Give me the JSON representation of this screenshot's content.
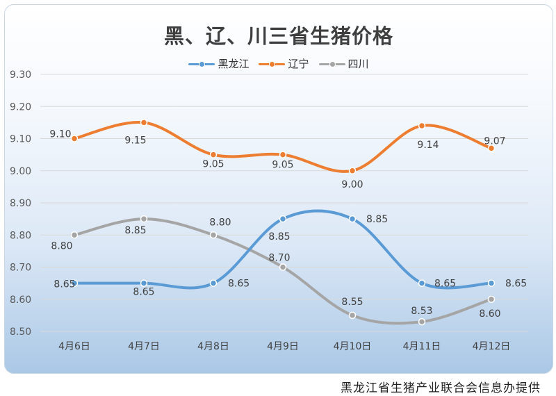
{
  "chart_data": {
    "type": "line",
    "title": "黑、辽、川三省生猪价格",
    "categories": [
      "4月6日",
      "4月7日",
      "4月8日",
      "4月9日",
      "4月10日",
      "4月11日",
      "4月12日"
    ],
    "series": [
      {
        "name": "黑龙江",
        "color": "#5b9bd5",
        "values": [
          8.65,
          8.65,
          8.65,
          8.85,
          8.85,
          8.65,
          8.65
        ]
      },
      {
        "name": "辽宁",
        "color": "#ed7d31",
        "values": [
          9.1,
          9.15,
          9.05,
          9.05,
          9.0,
          9.14,
          9.07
        ]
      },
      {
        "name": "四川",
        "color": "#a5a5a5",
        "values": [
          8.8,
          8.85,
          8.8,
          8.7,
          8.55,
          8.53,
          8.6
        ]
      }
    ],
    "ylim": [
      8.5,
      9.3
    ],
    "yticks": [
      "8.50",
      "8.60",
      "8.70",
      "8.80",
      "8.90",
      "9.00",
      "9.10",
      "9.20",
      "9.30"
    ],
    "xlabel": "",
    "ylabel": "",
    "grid": true,
    "legend": "top"
  },
  "footer": {
    "credit": "黑龙江省生猪产业联合会信息办提供"
  }
}
